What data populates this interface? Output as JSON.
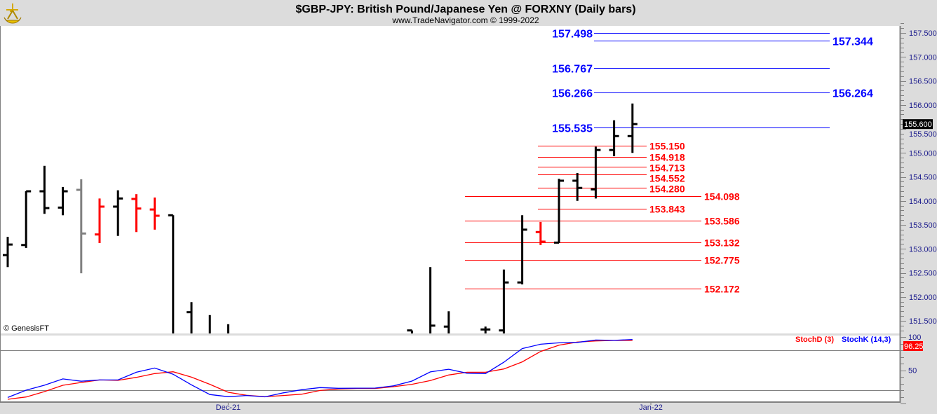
{
  "header": {
    "title": "$GBP-JPY:  British Pound/Japanese Yen @ FORXNY  (Daily bars)",
    "subtitle": "www.TradeNavigator.com © 1999-2022",
    "logo": "sextant-logo"
  },
  "copyright": "© GenesisFT",
  "colors": {
    "up": "#000000",
    "down": "#ff0000",
    "neutral": "#808080",
    "blue_level": "#0000ff",
    "red_level": "#ff0000",
    "stoch_k": "#0000ff",
    "stoch_d": "#ff0000"
  },
  "chart_data": [
    {
      "type": "ohlc",
      "ylim": [
        151.24,
        157.75
      ],
      "yticks": [
        "151.500",
        "152.000",
        "152.500",
        "153.000",
        "153.500",
        "154.000",
        "154.500",
        "155.000",
        "155.500",
        "156.000",
        "156.500",
        "157.000",
        "157.500"
      ],
      "xticks": [
        {
          "label": "Dec-21",
          "date": "2021-12-01"
        },
        {
          "label": "Jan-22",
          "date": "2022-01-03"
        }
      ],
      "last_price": "155.600",
      "bars": [
        {
          "date": "2021-11-15",
          "o": 152.87,
          "h": 153.25,
          "l": 152.62,
          "c": 153.09,
          "color": "up"
        },
        {
          "date": "2021-11-16",
          "o": 153.08,
          "h": 154.2,
          "l": 153.02,
          "c": 154.2,
          "color": "up"
        },
        {
          "date": "2021-11-17",
          "o": 154.2,
          "h": 154.73,
          "l": 153.73,
          "c": 153.85,
          "color": "up"
        },
        {
          "date": "2021-11-18",
          "o": 153.86,
          "h": 154.29,
          "l": 153.7,
          "c": 154.2,
          "color": "up"
        },
        {
          "date": "2021-11-19",
          "o": 154.23,
          "h": 154.45,
          "l": 152.49,
          "c": 153.32,
          "color": "neutral"
        },
        {
          "date": "2021-11-22",
          "o": 153.3,
          "h": 154.05,
          "l": 153.12,
          "c": 153.88,
          "color": "down"
        },
        {
          "date": "2021-11-23",
          "o": 153.88,
          "h": 154.22,
          "l": 153.27,
          "c": 154.05,
          "color": "up"
        },
        {
          "date": "2021-11-24",
          "o": 154.04,
          "h": 154.14,
          "l": 153.35,
          "c": 153.84,
          "color": "down"
        },
        {
          "date": "2021-11-25",
          "o": 153.82,
          "h": 154.07,
          "l": 153.4,
          "c": 153.69,
          "color": "down"
        },
        {
          "date": "2021-11-26",
          "o": 153.7,
          "h": 153.7,
          "l": null,
          "c": null,
          "color": "up"
        },
        {
          "date": "2021-11-29",
          "o": 151.68,
          "h": 151.89,
          "l": null,
          "c": null,
          "color": "up"
        },
        {
          "date": "2021-11-30",
          "o": null,
          "h": 151.62,
          "l": null,
          "c": null,
          "color": "up"
        },
        {
          "date": "2021-12-01",
          "o": null,
          "h": 151.43,
          "l": null,
          "c": null,
          "color": "up"
        },
        {
          "date": "2021-12-15",
          "o": 151.3,
          "h": 151.3,
          "l": null,
          "c": null,
          "color": "up"
        },
        {
          "date": "2021-12-16",
          "o": null,
          "h": 152.62,
          "l": null,
          "c": 151.4,
          "color": "up"
        },
        {
          "date": "2021-12-17",
          "o": 151.38,
          "h": 151.7,
          "l": null,
          "c": null,
          "color": "up"
        },
        {
          "date": "2021-12-21",
          "o": 151.32,
          "h": 151.38,
          "l": null,
          "c": 151.32,
          "color": "up"
        },
        {
          "date": "2021-12-22",
          "o": 151.3,
          "h": 152.57,
          "l": null,
          "c": 152.3,
          "color": "up"
        },
        {
          "date": "2021-12-23",
          "o": 152.3,
          "h": 153.7,
          "l": 152.26,
          "c": 153.4,
          "color": "up"
        },
        {
          "date": "2021-12-24",
          "o": 153.35,
          "h": 153.56,
          "l": 153.08,
          "c": 153.15,
          "color": "down"
        },
        {
          "date": "2021-12-27",
          "o": 153.13,
          "h": 154.46,
          "l": 153.12,
          "c": 154.42,
          "color": "up"
        },
        {
          "date": "2021-12-28",
          "o": 154.42,
          "h": 154.58,
          "l": 154.0,
          "c": 154.27,
          "color": "up"
        },
        {
          "date": "2021-12-29",
          "o": 154.24,
          "h": 155.13,
          "l": 154.05,
          "c": 155.06,
          "color": "up"
        },
        {
          "date": "2021-12-30",
          "o": 155.06,
          "h": 155.68,
          "l": 154.93,
          "c": 155.35,
          "color": "up"
        },
        {
          "date": "2021-12-31",
          "o": 155.35,
          "h": 156.03,
          "l": 155.0,
          "c": 155.6,
          "color": "up"
        }
      ],
      "levels": [
        {
          "value": "157.498",
          "group": "blue",
          "label_side": "left"
        },
        {
          "value": "157.344",
          "group": "blue",
          "label_side": "right"
        },
        {
          "value": "156.767",
          "group": "blue",
          "label_side": "left"
        },
        {
          "value": "156.266",
          "group": "blue",
          "label_side": "left"
        },
        {
          "value": "156.264",
          "group": "blue",
          "label_side": "right"
        },
        {
          "value": "155.535",
          "group": "blue",
          "label_side": "left"
        },
        {
          "value": "155.150",
          "group": "red-short",
          "label_side": "right"
        },
        {
          "value": "154.918",
          "group": "red-short",
          "label_side": "right"
        },
        {
          "value": "154.713",
          "group": "red-short",
          "label_side": "right"
        },
        {
          "value": "154.552",
          "group": "red-short",
          "label_side": "right"
        },
        {
          "value": "154.280",
          "group": "red-short",
          "label_side": "right"
        },
        {
          "value": "154.098",
          "group": "red-long",
          "label_side": "right"
        },
        {
          "value": "153.843",
          "group": "red-short",
          "label_side": "right"
        },
        {
          "value": "153.586",
          "group": "red-long",
          "label_side": "right"
        },
        {
          "value": "153.132",
          "group": "red-long",
          "label_side": "right"
        },
        {
          "value": "152.775",
          "group": "red-long",
          "label_side": "right"
        },
        {
          "value": "152.172",
          "group": "red-long",
          "label_side": "right"
        }
      ]
    },
    {
      "type": "line",
      "first_date": "2021-11-15",
      "ylim": [
        0,
        100
      ],
      "yticks": [
        "100",
        "50"
      ],
      "gridlines": [
        80,
        20
      ],
      "last_value": "96.25",
      "series": [
        {
          "name": "StochD (3)",
          "color": "#ff0000",
          "values": [
            6.3,
            9.8,
            17.9,
            27.4,
            31.6,
            35.4,
            34.7,
            39.3,
            44.9,
            47.7,
            39.6,
            28.8,
            16.8,
            12.3,
            10.2,
            12,
            14,
            19.6,
            21.8,
            22.5,
            22.5,
            25.3,
            28.8,
            34.4,
            42.8,
            47,
            47,
            51.9,
            62.5,
            78.2,
            87.7,
            92.3,
            94,
            94.7,
            94.7
          ]
        },
        {
          "name": "StochK (14,3)",
          "color": "#0000ff",
          "values": [
            9.1,
            20,
            27.5,
            37,
            33.5,
            35.4,
            35.4,
            47,
            53.3,
            44,
            28,
            13.5,
            10.2,
            12,
            10,
            16,
            20.7,
            23.9,
            22.8,
            23,
            23.2,
            26.5,
            33.7,
            47.5,
            51.5,
            45.5,
            45,
            62,
            82.5,
            89.1,
            91.2,
            91.8,
            95.4,
            94.8,
            96.25
          ]
        }
      ]
    }
  ]
}
